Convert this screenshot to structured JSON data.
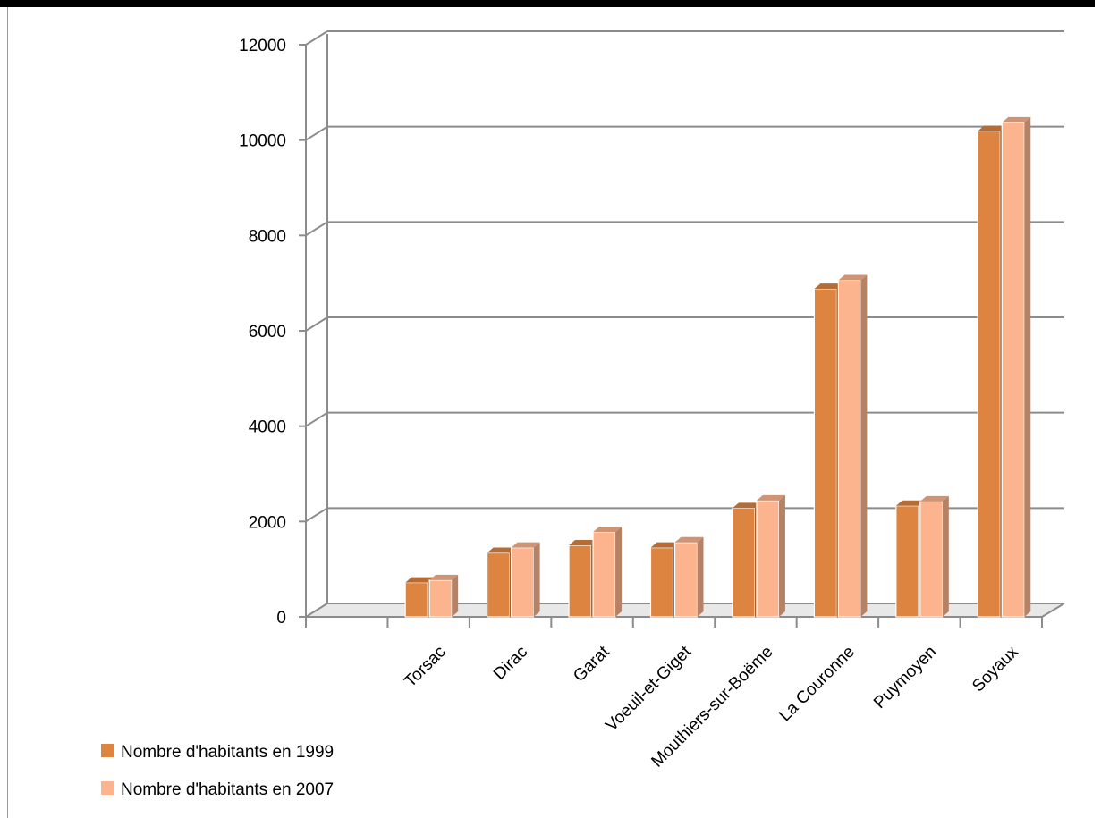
{
  "chart_data": {
    "type": "bar",
    "title": "",
    "xlabel": "",
    "ylabel": "",
    "ylim": [
      0,
      12000
    ],
    "yticks": [
      0,
      2000,
      4000,
      6000,
      8000,
      10000,
      12000
    ],
    "grid": true,
    "legend_position": "bottom-left",
    "categories": [
      "Torsac",
      "Dirac",
      "Garat",
      "Voeuil-et-Giget",
      "Mouthiers-sur-Boëme",
      "La Couronne",
      "Puymoyen",
      "Soyaux"
    ],
    "series": [
      {
        "name": "Nombre d'habitants en 1999",
        "color": "#dd8441",
        "values": [
          720,
          1340,
          1500,
          1450,
          2280,
          6880,
          2330,
          10190
        ]
      },
      {
        "name": "Nombre d'habitants en 2007",
        "color": "#fbb48d",
        "values": [
          770,
          1450,
          1780,
          1560,
          2440,
          7060,
          2420,
          10370
        ]
      }
    ]
  }
}
